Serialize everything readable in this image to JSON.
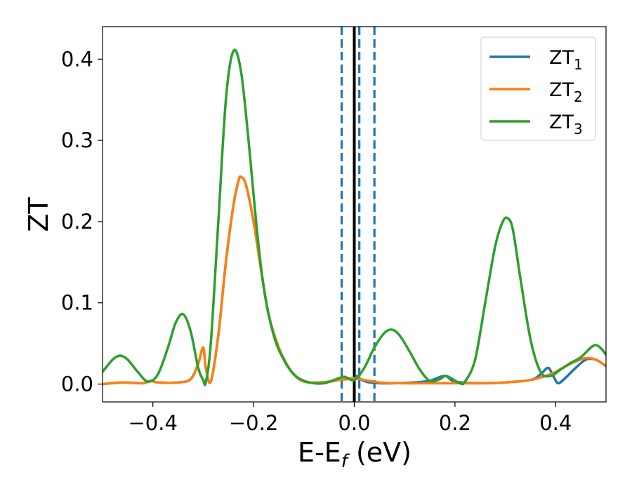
{
  "chart_data": {
    "type": "line",
    "title": "",
    "xlabel": {
      "base": "E-E",
      "sub": "f",
      "tail": " (eV)"
    },
    "ylabel": "ZT",
    "xlim": [
      -0.5,
      0.5
    ],
    "ylim": [
      -0.022,
      0.44
    ],
    "grid": false,
    "legend_position": "top-right",
    "x_ticks": [
      {
        "value": -0.4,
        "label": "−0.4"
      },
      {
        "value": -0.2,
        "label": "−0.2"
      },
      {
        "value": 0.0,
        "label": "0.0"
      },
      {
        "value": 0.2,
        "label": "0.2"
      },
      {
        "value": 0.4,
        "label": "0.4"
      }
    ],
    "y_ticks": [
      {
        "value": 0.0,
        "label": "0.0"
      },
      {
        "value": 0.1,
        "label": "0.1"
      },
      {
        "value": 0.2,
        "label": "0.2"
      },
      {
        "value": 0.3,
        "label": "0.3"
      },
      {
        "value": 0.4,
        "label": "0.4"
      }
    ],
    "vertical_lines": [
      {
        "x": -0.025,
        "color": "#1f77b4",
        "style": "dashed"
      },
      {
        "x": 0.0,
        "color": "#000000",
        "style": "solid"
      },
      {
        "x": 0.01,
        "color": "#1f77b4",
        "style": "dashed"
      },
      {
        "x": 0.04,
        "color": "#1f77b4",
        "style": "dashed"
      }
    ],
    "series": [
      {
        "name": "ZT",
        "name_sub": "1",
        "color": "#1f77b4",
        "x": [
          -0.5,
          -0.46,
          -0.42,
          -0.405,
          -0.39,
          -0.35,
          -0.325,
          -0.31,
          -0.3,
          -0.295,
          -0.285,
          -0.27,
          -0.255,
          -0.24,
          -0.23,
          -0.225,
          -0.215,
          -0.2,
          -0.185,
          -0.17,
          -0.15,
          -0.13,
          -0.11,
          -0.09,
          -0.07,
          -0.05,
          -0.03,
          -0.015,
          0.0,
          0.005,
          0.015,
          0.03,
          0.05,
          0.08,
          0.12,
          0.15,
          0.18,
          0.2,
          0.25,
          0.3,
          0.35,
          0.37,
          0.385,
          0.395,
          0.405,
          0.42,
          0.44,
          0.46,
          0.48,
          0.5
        ],
        "y": [
          0.0,
          0.002,
          0.001,
          0.004,
          0.002,
          0.002,
          0.006,
          0.025,
          0.045,
          0.02,
          0.003,
          0.06,
          0.15,
          0.22,
          0.25,
          0.255,
          0.245,
          0.2,
          0.14,
          0.085,
          0.045,
          0.02,
          0.006,
          0.002,
          0.002,
          0.003,
          0.005,
          0.006,
          0.007,
          0.01,
          0.005,
          0.002,
          0.001,
          0.001,
          0.002,
          0.004,
          0.01,
          0.003,
          0.001,
          0.002,
          0.005,
          0.012,
          0.02,
          0.01,
          0.001,
          0.008,
          0.02,
          0.03,
          0.03,
          0.022
        ]
      },
      {
        "name": "ZT",
        "name_sub": "2",
        "color": "#ff7f0e",
        "x": [
          -0.5,
          -0.46,
          -0.42,
          -0.405,
          -0.39,
          -0.35,
          -0.325,
          -0.31,
          -0.3,
          -0.295,
          -0.285,
          -0.27,
          -0.255,
          -0.24,
          -0.23,
          -0.225,
          -0.215,
          -0.2,
          -0.185,
          -0.17,
          -0.15,
          -0.13,
          -0.11,
          -0.09,
          -0.07,
          -0.05,
          -0.03,
          -0.015,
          0.0,
          0.05,
          0.1,
          0.15,
          0.2,
          0.25,
          0.3,
          0.35,
          0.38,
          0.4,
          0.42,
          0.44,
          0.46,
          0.48,
          0.5
        ],
        "y": [
          0.0,
          0.002,
          0.001,
          0.004,
          0.002,
          0.002,
          0.006,
          0.025,
          0.045,
          0.02,
          0.003,
          0.06,
          0.15,
          0.22,
          0.25,
          0.255,
          0.245,
          0.2,
          0.14,
          0.085,
          0.045,
          0.02,
          0.006,
          0.002,
          0.002,
          0.003,
          0.005,
          0.006,
          0.007,
          0.002,
          0.001,
          0.001,
          0.001,
          0.001,
          0.002,
          0.005,
          0.01,
          0.015,
          0.022,
          0.028,
          0.032,
          0.03,
          0.022
        ]
      },
      {
        "name": "ZT",
        "name_sub": "3",
        "color": "#2ca02c",
        "x": [
          -0.5,
          -0.48,
          -0.465,
          -0.45,
          -0.43,
          -0.41,
          -0.39,
          -0.37,
          -0.355,
          -0.34,
          -0.325,
          -0.31,
          -0.3,
          -0.295,
          -0.285,
          -0.27,
          -0.255,
          -0.24,
          -0.225,
          -0.21,
          -0.195,
          -0.18,
          -0.16,
          -0.14,
          -0.12,
          -0.1,
          -0.08,
          -0.06,
          -0.04,
          -0.02,
          0.0,
          0.02,
          0.04,
          0.06,
          0.075,
          0.09,
          0.11,
          0.13,
          0.15,
          0.17,
          0.18,
          0.19,
          0.21,
          0.22,
          0.24,
          0.26,
          0.28,
          0.295,
          0.305,
          0.315,
          0.33,
          0.35,
          0.37,
          0.39,
          0.41,
          0.43,
          0.45,
          0.47,
          0.48,
          0.49,
          0.5
        ],
        "y": [
          0.015,
          0.03,
          0.035,
          0.03,
          0.015,
          0.003,
          0.012,
          0.045,
          0.075,
          0.086,
          0.065,
          0.02,
          0.005,
          0.002,
          0.05,
          0.2,
          0.35,
          0.41,
          0.385,
          0.3,
          0.2,
          0.12,
          0.06,
          0.03,
          0.012,
          0.004,
          0.001,
          0.001,
          0.005,
          0.009,
          0.005,
          0.02,
          0.045,
          0.063,
          0.067,
          0.06,
          0.04,
          0.018,
          0.004,
          0.006,
          0.01,
          0.008,
          0.001,
          0.003,
          0.03,
          0.1,
          0.17,
          0.2,
          0.204,
          0.19,
          0.13,
          0.055,
          0.015,
          0.01,
          0.018,
          0.026,
          0.033,
          0.045,
          0.048,
          0.044,
          0.036
        ]
      }
    ]
  }
}
